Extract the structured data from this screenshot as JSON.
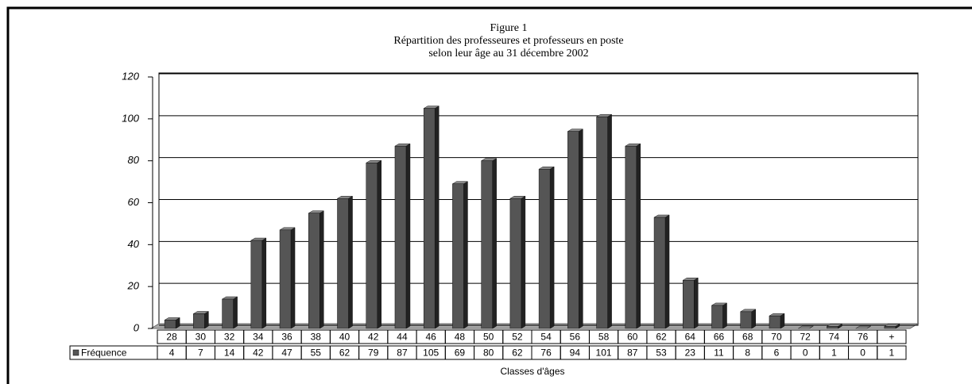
{
  "chart_data": {
    "type": "bar",
    "title": "Figure 1",
    "subtitle": [
      "Répartition des professeures et professeurs en poste",
      "selon leur âge au 31 décembre 2002"
    ],
    "x_label": "Classes d'âges",
    "categories": [
      "28",
      "30",
      "32",
      "34",
      "36",
      "38",
      "40",
      "42",
      "44",
      "46",
      "48",
      "50",
      "52",
      "54",
      "56",
      "58",
      "60",
      "62",
      "64",
      "66",
      "68",
      "70",
      "72",
      "74",
      "76",
      "+"
    ],
    "series": [
      {
        "name": "Fréquence",
        "color": "#555555",
        "values": [
          4,
          7,
          14,
          42,
          47,
          55,
          62,
          79,
          87,
          105,
          69,
          80,
          62,
          76,
          94,
          101,
          87,
          53,
          23,
          11,
          8,
          6,
          0,
          1,
          0,
          1
        ]
      }
    ],
    "ylim": [
      0,
      120
    ],
    "yticks": [
      0,
      20,
      40,
      60,
      80,
      100,
      120
    ],
    "grid": true,
    "data_table": true
  }
}
